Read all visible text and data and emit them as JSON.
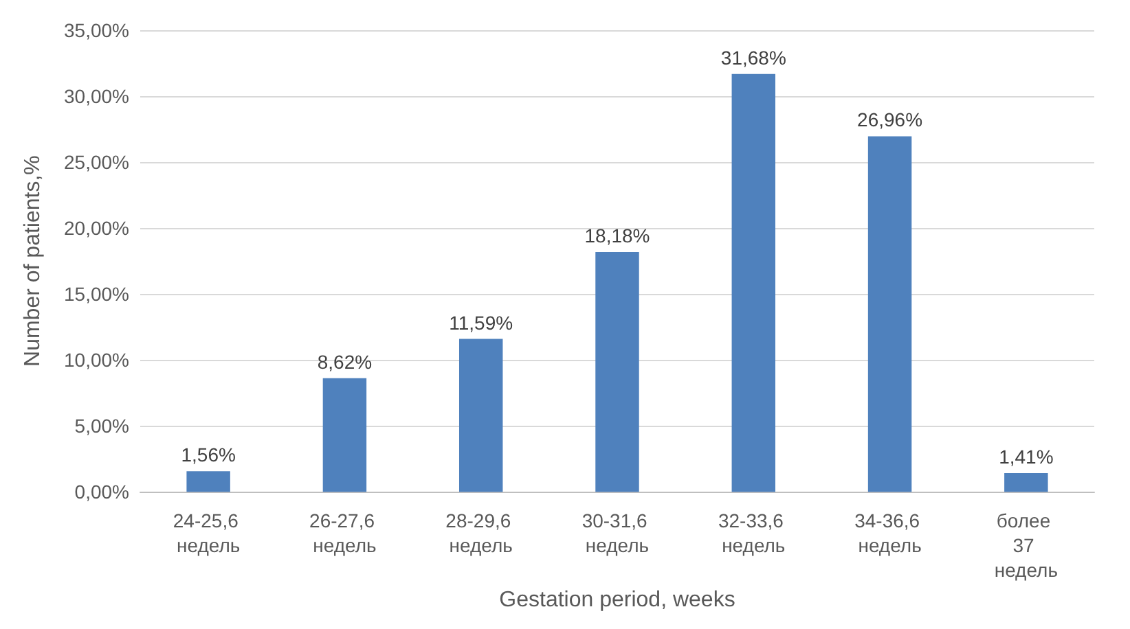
{
  "chart_data": {
    "type": "bar",
    "xlabel": "Gestation period, weeks",
    "ylabel": "Number of patients,%",
    "categories": [
      "24-25,6 недель",
      "26-27,6 недель",
      "28-29,6 недель",
      "30-31,6 недель",
      "32-33,6 недель",
      "34-36,6 недель",
      "более 37 недель"
    ],
    "values": [
      1.56,
      8.62,
      11.59,
      18.18,
      31.68,
      26.96,
      1.41
    ],
    "value_labels": [
      "1,56%",
      "8,62%",
      "11,59%",
      "18,18%",
      "31,68%",
      "26,96%",
      "1,41%"
    ],
    "color": "#4f81bd",
    "ylim": [
      0,
      35
    ],
    "yticks": [
      {
        "value": 0,
        "label": "0,00%"
      },
      {
        "value": 5,
        "label": "5,00%"
      },
      {
        "value": 10,
        "label": "10,00%"
      },
      {
        "value": 15,
        "label": "15,00%"
      },
      {
        "value": 20,
        "label": "20,00%"
      },
      {
        "value": 25,
        "label": "25,00%"
      },
      {
        "value": 30,
        "label": "30,00%"
      },
      {
        "value": 35,
        "label": "35,00%"
      }
    ],
    "grid": "y"
  }
}
